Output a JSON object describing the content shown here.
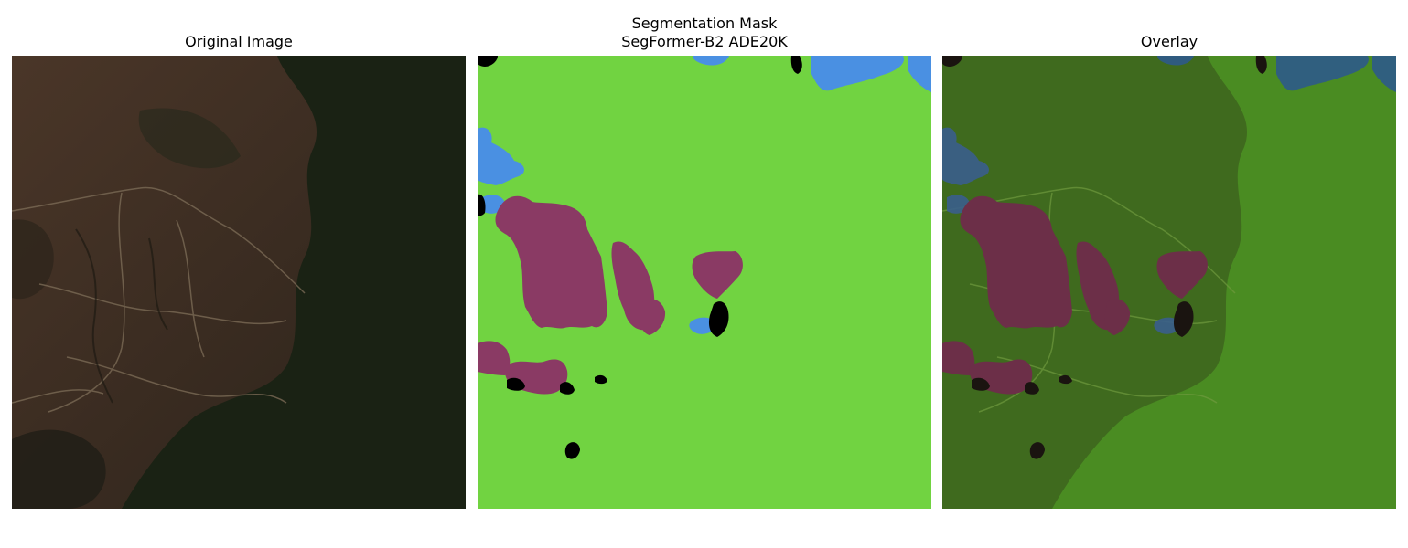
{
  "panels": [
    {
      "title": "Original Image"
    },
    {
      "title_line1": "Segmentation Mask",
      "title_line2": "SegFormer-B2 ADE20K"
    },
    {
      "title": "Overlay"
    }
  ],
  "colors": {
    "grass": "#71d341",
    "water": "#4a90e2",
    "earth": "#8a3a64",
    "unlabeled": "#000000",
    "terrain_brown": "#3f2f22",
    "forest_dark": "#1a2214"
  }
}
